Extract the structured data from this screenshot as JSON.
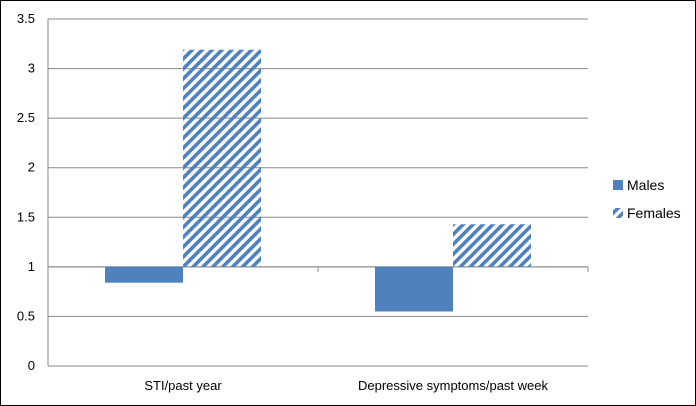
{
  "chart_data": {
    "type": "bar",
    "baseline": 1,
    "categories": [
      "STI/past year",
      "Depressive symptoms/past week"
    ],
    "series": [
      {
        "name": "Males",
        "values": [
          0.84,
          0.55
        ],
        "color": "#4F81BD",
        "fill": "solid"
      },
      {
        "name": "Females",
        "values": [
          3.19,
          1.43
        ],
        "color": "#4F81BD",
        "fill": "diagonal-stripes"
      }
    ],
    "ylim": [
      0,
      3.5
    ],
    "yticks": [
      "0",
      "0.5",
      "1",
      "1.5",
      "2",
      "2.5",
      "3",
      "3.5"
    ],
    "grid": true,
    "legend_position": "right"
  }
}
